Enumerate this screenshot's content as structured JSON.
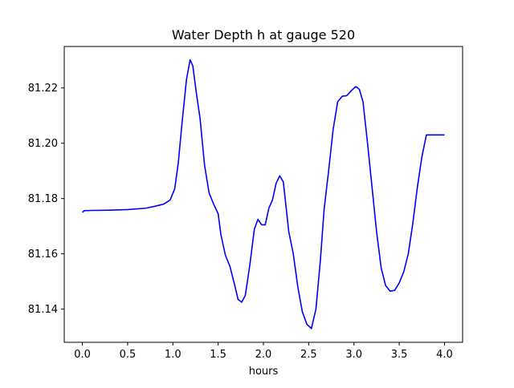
{
  "chart_data": {
    "type": "line",
    "title": "Water Depth h at gauge 520",
    "xlabel": "hours",
    "ylabel": "",
    "xlim": [
      -0.2,
      4.2
    ],
    "ylim": [
      81.128,
      81.235
    ],
    "xticks": [
      0.0,
      0.5,
      1.0,
      1.5,
      2.0,
      2.5,
      3.0,
      3.5,
      4.0
    ],
    "xtick_labels": [
      "0.0",
      "0.5",
      "1.0",
      "1.5",
      "2.0",
      "2.5",
      "3.0",
      "3.5",
      "4.0"
    ],
    "yticks": [
      81.14,
      81.16,
      81.18,
      81.2,
      81.22
    ],
    "ytick_labels": [
      "81.14",
      "81.16",
      "81.18",
      "81.20",
      "81.22"
    ],
    "grid": false,
    "series": [
      {
        "color": "#0000ff",
        "x": [
          0.0,
          0.02,
          0.1,
          0.3,
          0.5,
          0.7,
          0.8,
          0.9,
          0.97,
          1.02,
          1.06,
          1.1,
          1.15,
          1.19,
          1.22,
          1.26,
          1.3,
          1.35,
          1.4,
          1.45,
          1.5,
          1.53,
          1.58,
          1.63,
          1.68,
          1.72,
          1.76,
          1.8,
          1.85,
          1.9,
          1.94,
          1.98,
          2.02,
          2.06,
          2.1,
          2.14,
          2.18,
          2.22,
          2.25,
          2.28,
          2.33,
          2.38,
          2.43,
          2.48,
          2.53,
          2.58,
          2.63,
          2.67,
          2.72,
          2.77,
          2.82,
          2.87,
          2.92,
          2.97,
          3.02,
          3.06,
          3.1,
          3.15,
          3.2,
          3.25,
          3.3,
          3.35,
          3.4,
          3.45,
          3.5,
          3.55,
          3.6,
          3.65,
          3.7,
          3.75,
          3.8,
          3.85,
          3.9,
          3.95,
          4.0
        ],
        "y": [
          81.175,
          81.1756,
          81.1757,
          81.1758,
          81.176,
          81.1765,
          81.1772,
          81.178,
          81.1795,
          81.1835,
          81.193,
          81.207,
          81.223,
          81.2302,
          81.228,
          81.218,
          81.209,
          81.192,
          81.182,
          81.178,
          81.1745,
          81.167,
          81.1595,
          81.1555,
          81.149,
          81.1435,
          81.1425,
          81.145,
          81.156,
          81.169,
          81.1725,
          81.1705,
          81.1705,
          81.1765,
          81.1795,
          81.1855,
          81.1882,
          81.186,
          81.177,
          81.168,
          81.16,
          81.148,
          81.139,
          81.1345,
          81.133,
          81.14,
          81.158,
          81.176,
          81.19,
          81.205,
          81.215,
          81.217,
          81.2172,
          81.219,
          81.2205,
          81.2195,
          81.215,
          81.2,
          81.184,
          81.168,
          81.155,
          81.1485,
          81.1465,
          81.1468,
          81.1495,
          81.1535,
          81.16,
          81.171,
          81.184,
          81.195,
          81.203,
          81.203,
          81.203,
          81.203,
          81.203
        ]
      }
    ]
  }
}
